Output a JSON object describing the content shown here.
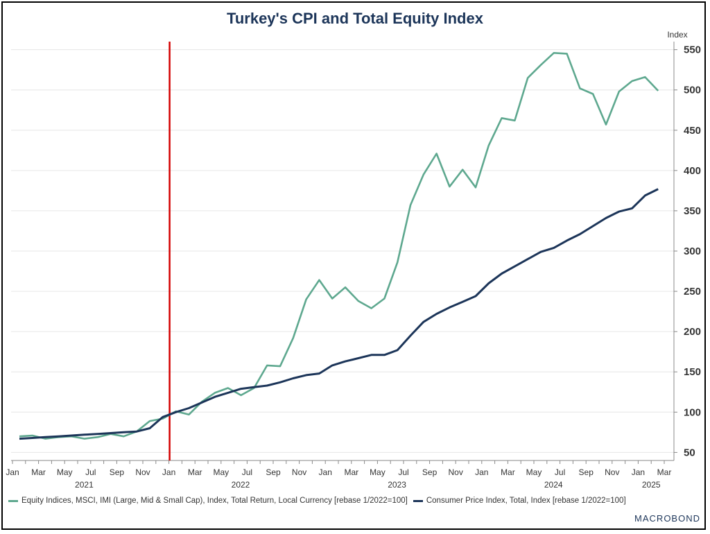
{
  "brand": "MACROBOND",
  "colors": {
    "equity": "#5ea88f",
    "cpi": "#1c3559",
    "marker": "#d40000",
    "grid": "#e6e6e6"
  },
  "chart_data": {
    "type": "line",
    "title": "Turkey's CPI and Total Equity Index",
    "ylabel": "Index",
    "ylim": [
      40,
      560
    ],
    "yticks": [
      50,
      100,
      150,
      200,
      250,
      300,
      350,
      400,
      450,
      500,
      550
    ],
    "grid": true,
    "legend_position": "bottom",
    "x_tick_labels": [
      "Jan",
      "Mar",
      "May",
      "Jul",
      "Sep",
      "Nov",
      "Jan",
      "Mar",
      "May",
      "Jul",
      "Sep",
      "Nov",
      "Jan",
      "Mar",
      "May",
      "Jul",
      "Sep",
      "Nov",
      "Jan",
      "Mar",
      "May",
      "Jul",
      "Sep",
      "Nov",
      "Jan",
      "Mar"
    ],
    "year_labels": [
      "2021",
      "2022",
      "2023",
      "2024",
      "2025"
    ],
    "vertical_marker": "2022-01",
    "x": [
      "2021-01",
      "2021-02",
      "2021-03",
      "2021-04",
      "2021-05",
      "2021-06",
      "2021-07",
      "2021-08",
      "2021-09",
      "2021-10",
      "2021-11",
      "2021-12",
      "2022-01",
      "2022-02",
      "2022-03",
      "2022-04",
      "2022-05",
      "2022-06",
      "2022-07",
      "2022-08",
      "2022-09",
      "2022-10",
      "2022-11",
      "2022-12",
      "2023-01",
      "2023-02",
      "2023-03",
      "2023-04",
      "2023-05",
      "2023-06",
      "2023-07",
      "2023-08",
      "2023-09",
      "2023-10",
      "2023-11",
      "2023-12",
      "2024-01",
      "2024-02",
      "2024-03",
      "2024-04",
      "2024-05",
      "2024-06",
      "2024-07",
      "2024-08",
      "2024-09",
      "2024-10",
      "2024-11",
      "2024-12",
      "2025-01",
      "2025-02"
    ],
    "series": [
      {
        "name": "Equity Indices, MSCI, IMI (Large, Mid & Small Cap), Index, Total Return, Local Currency [rebase 1/2022=100]",
        "values": [
          70,
          71,
          67,
          69,
          70,
          67,
          69,
          73,
          70,
          76,
          89,
          92,
          101,
          97,
          113,
          124,
          130,
          121,
          130,
          158,
          157,
          192,
          240,
          264,
          241,
          255,
          238,
          229,
          241,
          286,
          357,
          395,
          421,
          380,
          401,
          379,
          431,
          465,
          462,
          515,
          531,
          546,
          545,
          502,
          495,
          457,
          498,
          511,
          516,
          499
        ]
      },
      {
        "name": "Consumer Price Index, Total, Index [rebase 1/2022=100]",
        "values": [
          67,
          68,
          69,
          70,
          71,
          72,
          73,
          74,
          75,
          76,
          80,
          94,
          100,
          105,
          112,
          119,
          124,
          129,
          131,
          133,
          137,
          142,
          146,
          148,
          158,
          163,
          167,
          171,
          171,
          177,
          195,
          212,
          222,
          230,
          237,
          244,
          260,
          272,
          281,
          290,
          299,
          304,
          313,
          321,
          331,
          341,
          349,
          353,
          369,
          377
        ]
      }
    ]
  }
}
